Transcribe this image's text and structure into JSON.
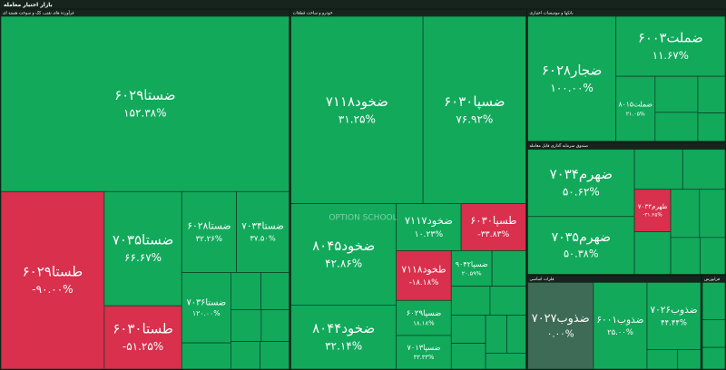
{
  "chart_data": {
    "type": "treemap",
    "title": "بازار اختیار معامله",
    "watermark": "OPTION SCHOOL",
    "colors": {
      "up": "#12a95b",
      "down": "#d8304d",
      "flat": "#3d6b55"
    },
    "sectors": [
      {
        "name": "فرآورده های نفتی، کک و سوخت هسته ای",
        "tiles": [
          {
            "name": "ضستا۶۰۲۹",
            "value": 152.38,
            "value_label": "۱۵۲.۳۸%",
            "size": 62800
          },
          {
            "name": "طستا۶۰۲۹",
            "value": -90,
            "value_label": "-۹۰.۰۰%",
            "size": 22800
          },
          {
            "name": "ضستا۷۰۳۵",
            "value": 66.67,
            "value_label": "۶۶.۶۷%",
            "size": 11000
          },
          {
            "name": "طستا۶۰۳۰",
            "value": -51.25,
            "value_label": "-۵۱.۲۵%",
            "size": 6100
          },
          {
            "name": "ضستا۶۰۲۸",
            "value": 32.26,
            "value_label": "۳۲.۲۶%",
            "size": 5500
          },
          {
            "name": "ضستا۷۰۳۴",
            "value": 37.5,
            "value_label": "۳۷.۵۰%",
            "size": 5300
          },
          {
            "name": "ضستا۷۰۳۶",
            "value": 120,
            "value_label": "۱۲۰.۰۰%",
            "size": 4300
          },
          {
            "name": null,
            "value": null,
            "value_label": null,
            "size": 1600
          },
          {
            "name": null,
            "value": null,
            "value_label": null,
            "size": 1400
          },
          {
            "name": null,
            "value": null,
            "value_label": null,
            "size": 1300
          },
          {
            "name": null,
            "value": null,
            "value_label": null,
            "size": 1200
          },
          {
            "name": null,
            "value": null,
            "value_label": null,
            "size": 1100
          },
          {
            "name": null,
            "value": null,
            "value_label": null,
            "size": 1000
          },
          {
            "name": null,
            "value": null,
            "value_label": null,
            "size": 1000
          }
        ]
      },
      {
        "name": "خودرو و ساخت قطعات",
        "tiles": [
          {
            "name": "ضخود۷۱۱۸",
            "value": 31.25,
            "value_label": "۳۱.۲۵%",
            "size": 30800
          },
          {
            "name": "ضسپا۶۰۳۰",
            "value": 76.92,
            "value_label": "۷۶.۹۲%",
            "size": 24000
          },
          {
            "name": "ضخود۸۰۴۵",
            "value": 42.86,
            "value_label": "۴۲.۸۶%",
            "size": 13300
          },
          {
            "name": "ضخود۸۰۴۴",
            "value": 32.14,
            "value_label": "۳۲.۱۴%",
            "size": 8400
          },
          {
            "name": "ضخود۷۱۱۷",
            "value": 10.23,
            "value_label": "۱۰.۲۳%",
            "size": 3800
          },
          {
            "name": "طسپا۶۰۳۰",
            "value": -33.83,
            "value_label": "-۳۳.۸۳%",
            "size": 3800
          },
          {
            "name": "طخود۷۱۱۸",
            "value": -18.18,
            "value_label": "-۱۸.۱۸%",
            "size": 3400
          },
          {
            "name": "ضسپا۶۰۲۹",
            "value": 18.18,
            "value_label": "۱۸.۱۸%",
            "size": 2400
          },
          {
            "name": "ضسپا۷۰۱۳",
            "value": 33.33,
            "value_label": "۳۳.۳۳%",
            "size": 2300
          },
          {
            "name": "ضسپا۹۰۴۲",
            "value": 20.59,
            "value_label": "۲۰.۵۹%",
            "size": 1800
          },
          {
            "name": null,
            "value": null,
            "value_label": null,
            "size": 1500
          },
          {
            "name": null,
            "value": null,
            "value_label": null,
            "size": 1400
          },
          {
            "name": null,
            "value": null,
            "value_label": null,
            "size": 1300
          },
          {
            "name": null,
            "value": null,
            "value_label": null,
            "size": 1200
          },
          {
            "name": null,
            "value": null,
            "value_label": null,
            "size": 1100
          },
          {
            "name": null,
            "value": null,
            "value_label": null,
            "size": 1000
          },
          {
            "name": null,
            "value": null,
            "value_label": null,
            "size": 900
          },
          {
            "name": null,
            "value": null,
            "value_label": null,
            "size": 800
          }
        ]
      },
      {
        "name": "بانکها و موسسات اعتباری",
        "tiles": [
          {
            "name": "ضجار۶۰۲۸",
            "value": 100,
            "value_label": "۱۰۰.۰۰%",
            "size": 14300
          },
          {
            "name": "ضملت۶۰۰۳",
            "value": 11.67,
            "value_label": "۱۱.۶۷%",
            "size": 8500
          },
          {
            "name": "ضملت۸۰۱۵",
            "value": 21.05,
            "value_label": "۲۱.۰۵%",
            "size": 3300
          },
          {
            "name": null,
            "value": null,
            "value_label": null,
            "size": 2000
          },
          {
            "name": null,
            "value": null,
            "value_label": null,
            "size": 1600
          },
          {
            "name": null,
            "value": null,
            "value_label": null,
            "size": 1300
          },
          {
            "name": null,
            "value": null,
            "value_label": null,
            "size": 1000
          }
        ]
      },
      {
        "name": "صندوق سرمایه گذاری قابل معامله",
        "tiles": [
          {
            "name": "ضهرم۷۰۳۴",
            "value": 50.62,
            "value_label": "۵۰.۶۲%",
            "size": 9300
          },
          {
            "name": "ضهرم۷۰۳۵",
            "value": 50.38,
            "value_label": "۵۰.۳۸%",
            "size": 8000
          },
          {
            "name": null,
            "value": null,
            "value_label": null,
            "size": 2500
          },
          {
            "name": null,
            "value": null,
            "value_label": null,
            "size": 2200
          },
          {
            "name": "طهرم۷۰۳۴",
            "value": -31.25,
            "value_label": "-۳۱.۲۵%",
            "size": 2000
          },
          {
            "name": null,
            "value": null,
            "value_label": null,
            "size": 2000
          },
          {
            "name": null,
            "value": null,
            "value_label": null,
            "size": 1800
          },
          {
            "name": null,
            "value": null,
            "value_label": null,
            "size": 1600
          },
          {
            "name": null,
            "value": null,
            "value_label": null,
            "size": 1400
          },
          {
            "name": null,
            "value": null,
            "value_label": null,
            "size": 1200
          }
        ]
      },
      {
        "name": "فلزات اساسی",
        "tiles": [
          {
            "name": "ضذوب۷۰۲۷",
            "value": 0,
            "value_label": "۰.۰۰%",
            "size": 7600
          },
          {
            "name": "ضذوب۶۰۰۱",
            "value": 25,
            "value_label": "۲۵.۰۰%",
            "size": 6200
          },
          {
            "name": "ضذوب۷۰۲۶",
            "value": 44.44,
            "value_label": "۴۴.۴۴%",
            "size": 4800
          },
          {
            "name": null,
            "value": null,
            "value_label": null,
            "size": 800
          },
          {
            "name": null,
            "value": null,
            "value_label": null,
            "size": 600
          }
        ]
      },
      {
        "name": "فرابورس",
        "tiles": [
          {
            "name": null,
            "value": null,
            "value_label": null,
            "size": 1200
          },
          {
            "name": null,
            "value": null,
            "value_label": null,
            "size": 900
          },
          {
            "name": null,
            "value": null,
            "value_label": null,
            "size": 700
          }
        ]
      }
    ]
  }
}
